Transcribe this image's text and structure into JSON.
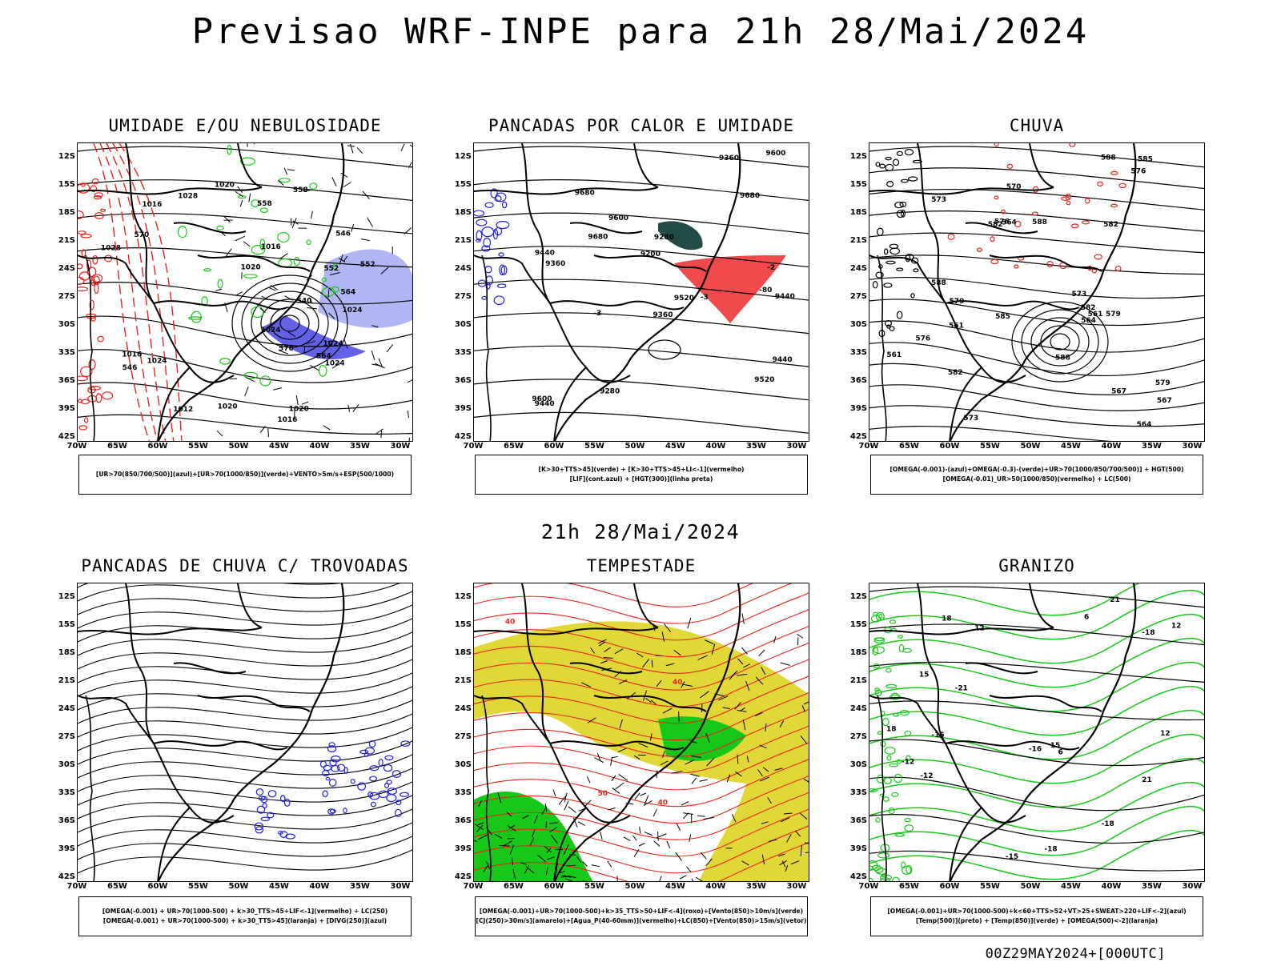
{
  "title": "Previsao WRF-INPE  para 21h 28/Mai/2024",
  "middle_title": "21h 28/Mai/2024",
  "footer": "00Z29MAY2024+[000UTC]",
  "lat_labels": [
    "12S",
    "15S",
    "18S",
    "21S",
    "24S",
    "27S",
    "30S",
    "33S",
    "36S",
    "39S",
    "42S"
  ],
  "lon_labels": [
    "70W",
    "65W",
    "60W",
    "55W",
    "50W",
    "45W",
    "40W",
    "35W",
    "30W"
  ],
  "colors": {
    "red": "#e8231f",
    "green": "#18c818",
    "blue": "#2020e0",
    "yellow": "#e0d836",
    "dark_teal": "#234b48",
    "pink": "#f04a4a",
    "light_blue": "#9ca4f0"
  },
  "panels": [
    {
      "title": "UMIDADE E/OU NEBULOSIDADE",
      "legend": [
        "[UR>70(850/700/500)](azul)+[UR>70(1000/850)](verde)+VENTO>5m/s+ESP(500/1000)"
      ],
      "contour_labels": [
        "1020",
        "1024",
        "1020",
        "1016",
        "1020",
        "1024",
        "1024",
        "1016",
        "1012",
        "1016",
        "1020",
        "1024",
        "1028",
        "1016",
        "1024",
        "1028",
        "570",
        "570",
        "564",
        "558",
        "564",
        "552",
        "558",
        "546",
        "540",
        "546",
        "552"
      ]
    },
    {
      "title": "PANCADAS POR CALOR E UMIDADE",
      "legend": [
        "[K>30+TTS>45](verde) + [K>30+TTS>45+LI<-1](vermelho)",
        "[LIF](cont.azul) + [HGT(300)](linha preta)"
      ],
      "contour_labels": [
        "9680",
        "9680",
        "9680",
        "9600",
        "9600",
        "9520",
        "9440",
        "9520",
        "9600",
        "9440",
        "9360",
        "9440",
        "9440",
        "9280",
        "9360",
        "9360",
        "9280",
        "9200",
        "-80",
        "-2",
        "-3",
        "-3"
      ]
    },
    {
      "title": "CHUVA",
      "legend": [
        "[OMEGA(-0.001)-(azul)+OMEGA(-0.3)-(verde)+UR>70(1000/850/700/500)] + HGT(500)",
        "[OMEGA(-0.01)_UR>50(1000/850)(vermelho) + LC(500)"
      ],
      "contour_labels": [
        "588",
        "588",
        "588",
        "588",
        "585",
        "585",
        "582",
        "582",
        "582",
        "582",
        "579",
        "576",
        "573",
        "567",
        "564",
        "561",
        "579",
        "576",
        "573",
        "579",
        "576",
        "573",
        "570",
        "567",
        "564",
        "561",
        "564",
        "561"
      ]
    },
    {
      "title": "PANCADAS DE CHUVA C/ TROVOADAS",
      "legend": [
        "[OMEGA(-0.001) + UR>70(1000-500) + k>30_TTS>45+LIF<-1](vermelho) + LC(250)",
        "[OMEGA(-0.001) + UR>70(1000-500) + k>30_TTS>45](laranja) + [DIVG(250)](azul)"
      ],
      "contour_labels": []
    },
    {
      "title": "TEMPESTADE",
      "legend": [
        "[OMEGA(-0.001)+UR>70(1000-500)+k>35_TTS>50+LIF<-4](roxo)+[Vento(850)>10m/s](verde)",
        "[CJ(250)>30m/s](amarelo)+[Agua_P(40-60mm)](vermelho)+LC(850)+[Vento(850)>15m/s](vetor)"
      ],
      "contour_labels": [
        "40",
        "40",
        "40",
        "50"
      ]
    },
    {
      "title": "GRANIZO",
      "legend": [
        "[OMEGA(-0.001)+UR>70(1000-500)+k<60+TTS>52+VT>25+SWEAT>220+LIF<-2](azul)",
        "[Temp(500)](preto) + [Temp(850)](verde) + [OMEGA(500)<-2](laranja)"
      ],
      "contour_labels": [
        "-18",
        "-15",
        "-12",
        "-18",
        "-21",
        "-16",
        "-15",
        "-12",
        "12",
        "15",
        "18",
        "21",
        "12",
        "12",
        "15",
        "18",
        "21",
        "6",
        "6",
        "-18"
      ]
    }
  ]
}
